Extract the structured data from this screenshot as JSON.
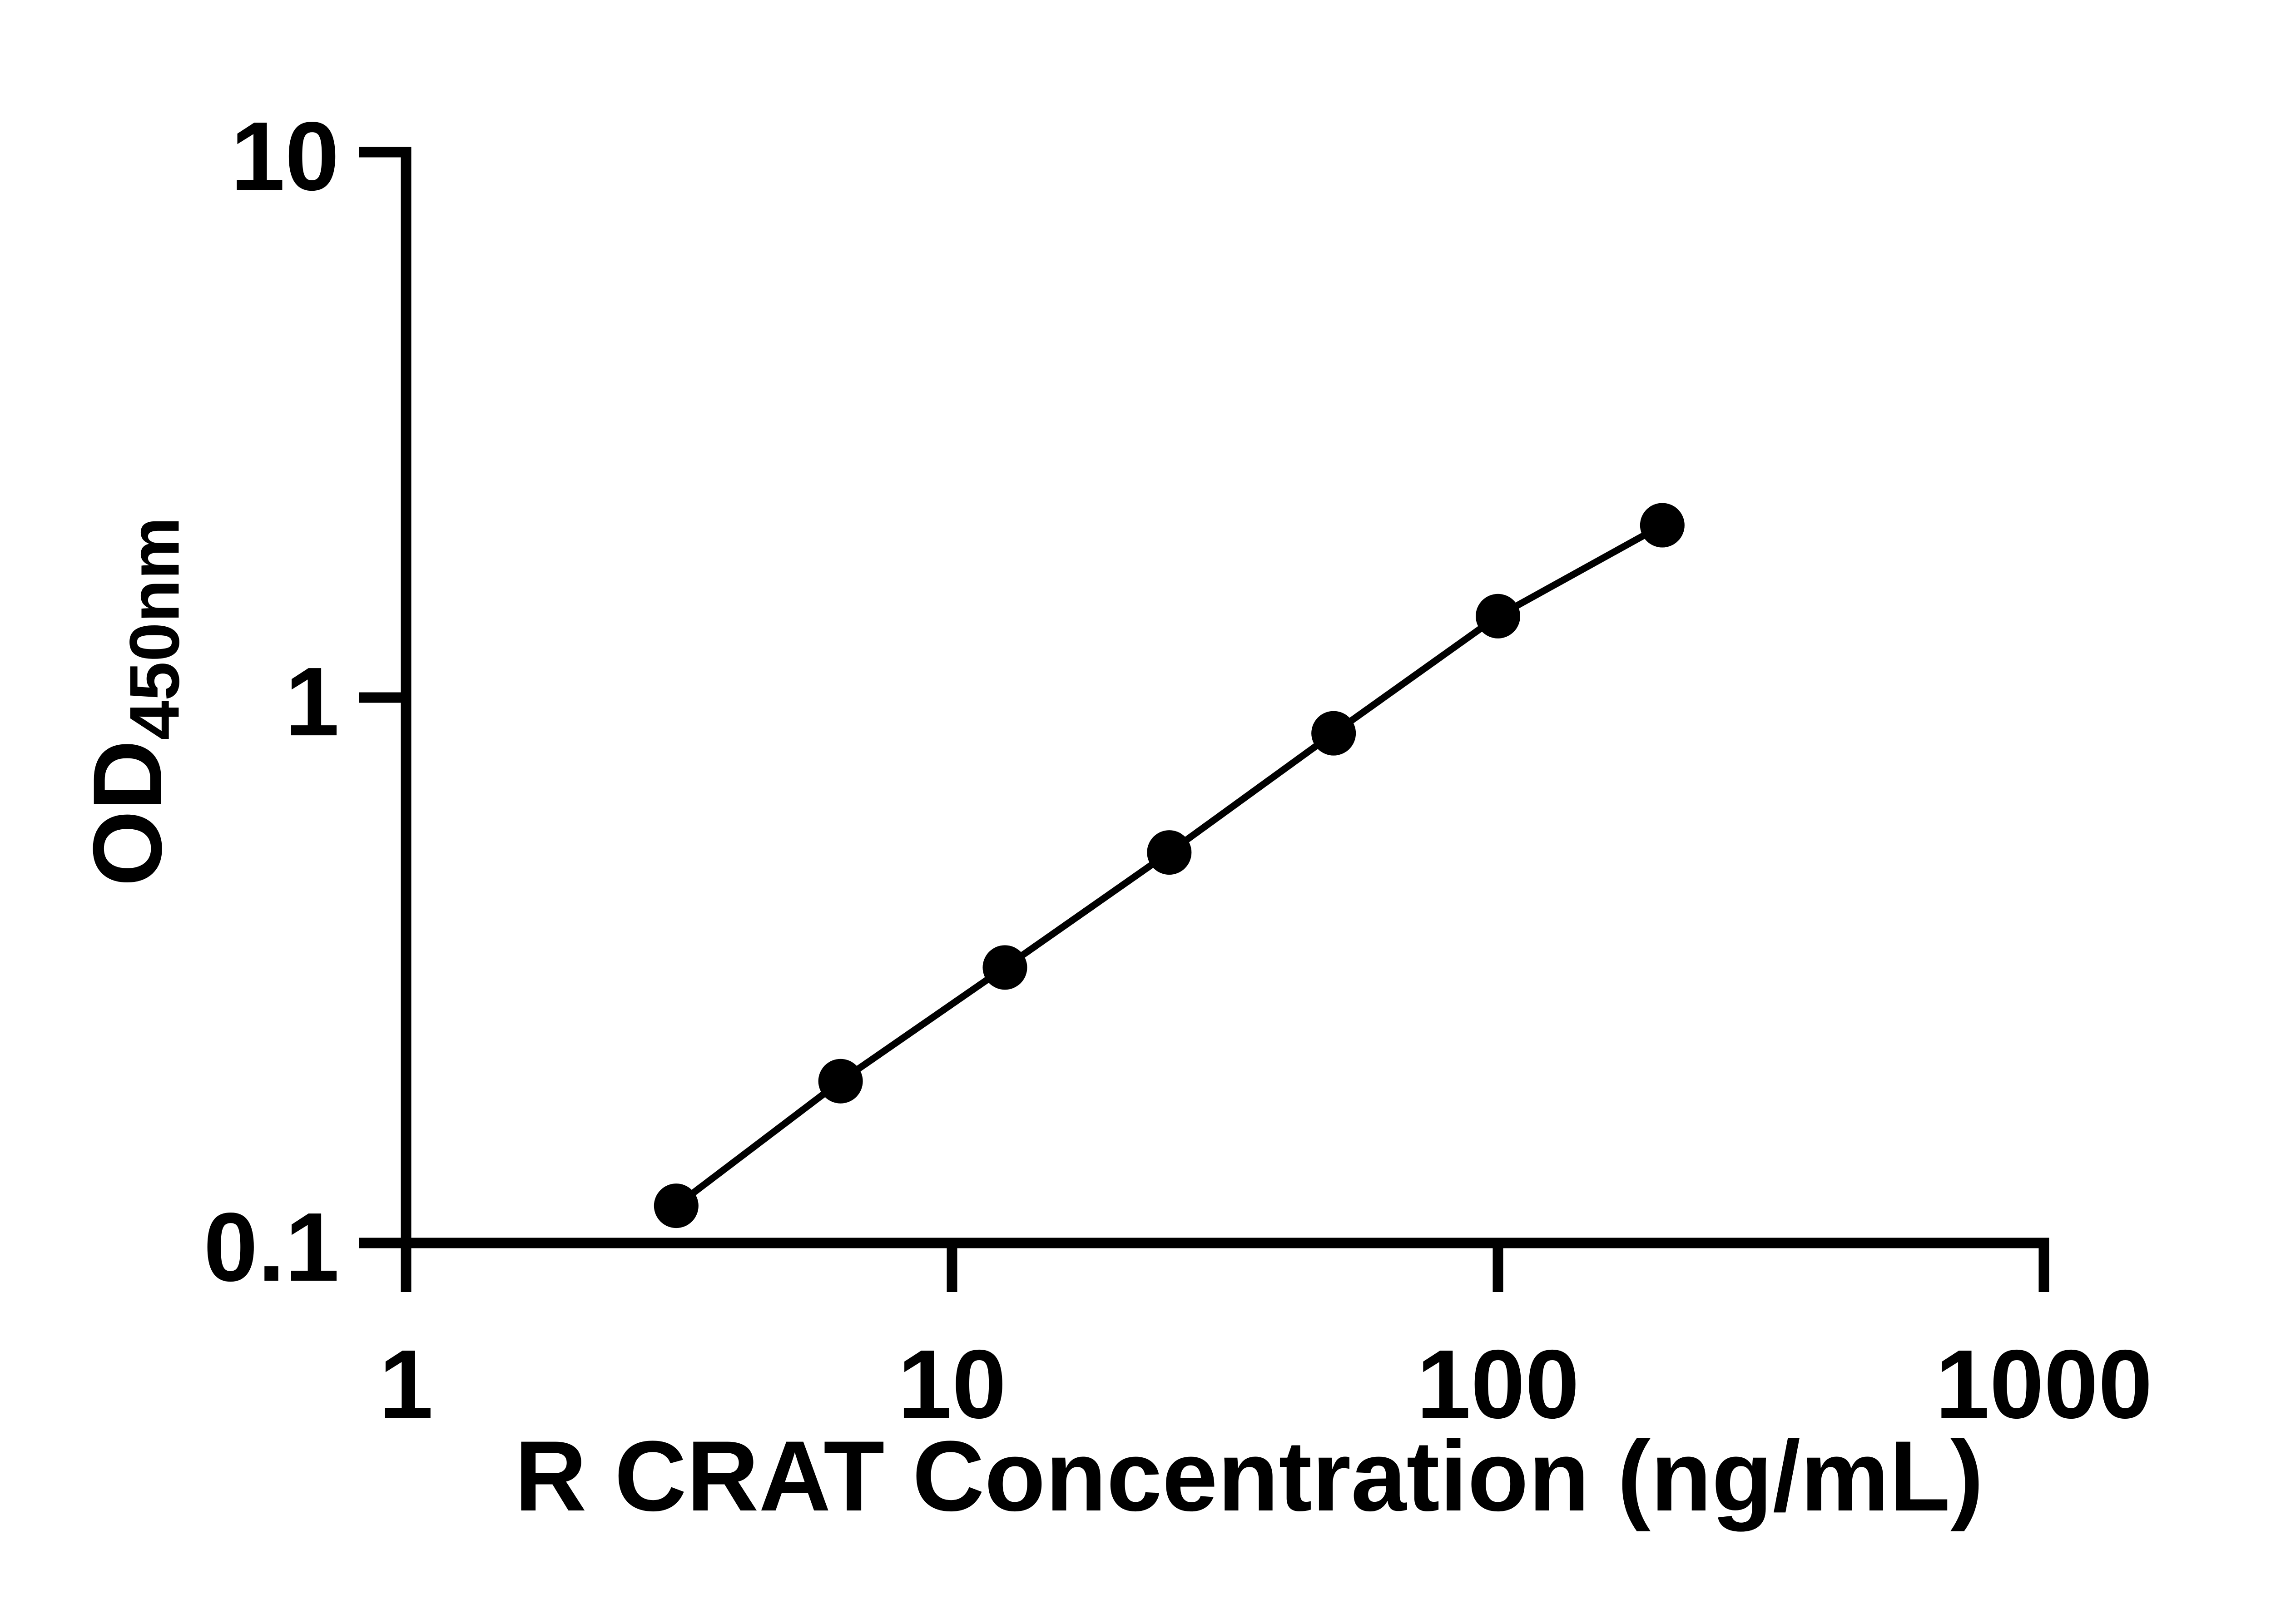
{
  "chart_data": {
    "type": "line",
    "title": "",
    "xlabel": "R CRAT Concentration (ng/mL)",
    "ylabel_main": "OD",
    "ylabel_sub": "450nm",
    "x_scale": "log10",
    "y_scale": "log10",
    "xlim": [
      1,
      1000
    ],
    "ylim": [
      0.1,
      10
    ],
    "x": [
      3.125,
      6.25,
      12.5,
      25,
      50,
      100,
      200
    ],
    "y": [
      0.117,
      0.198,
      0.32,
      0.52,
      0.86,
      1.41,
      2.07
    ],
    "x_tick_values": [
      1,
      10,
      100,
      1000
    ],
    "x_tick_labels": [
      "1",
      "10",
      "100",
      "1000"
    ],
    "y_tick_values": [
      10,
      1,
      0.1
    ],
    "y_tick_labels": [
      "10",
      "1",
      "0.1"
    ],
    "grid": "off",
    "legend": "none",
    "line_color": "#000000",
    "marker_color": "#000000",
    "axis_color": "#000000",
    "background": "#ffffff"
  }
}
